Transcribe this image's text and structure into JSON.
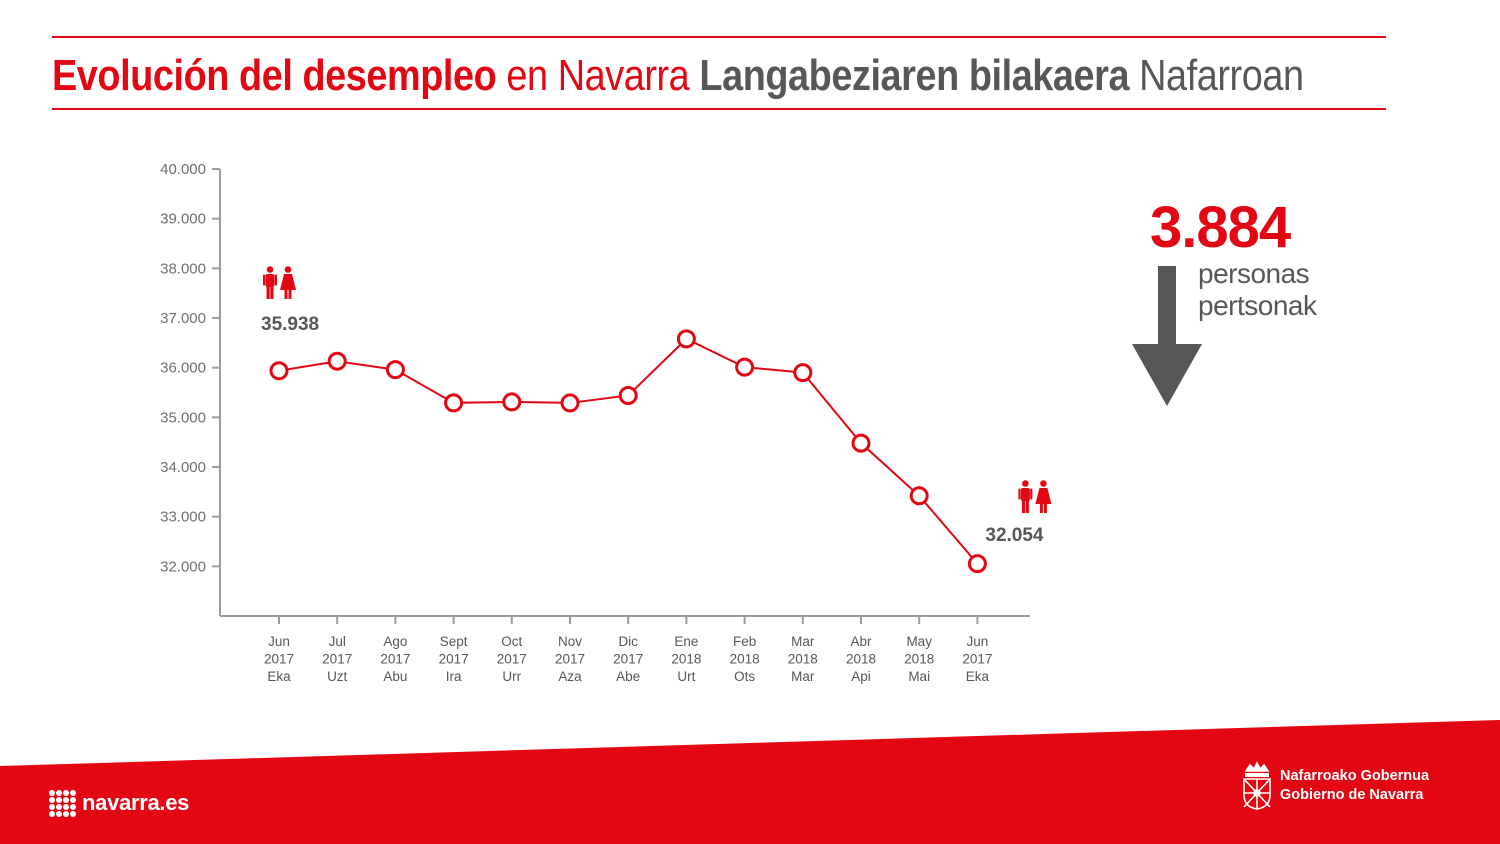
{
  "title": {
    "part1": "Evolución del desempleo",
    "part2": "en Navarra",
    "part3": "Langabeziaren bilakaera",
    "part4": "Nafarroan"
  },
  "colors": {
    "accent": "#e30613",
    "text_grey": "#575756",
    "arrow": "#575756"
  },
  "chart_data": {
    "type": "line",
    "categories": [
      [
        "Jun",
        "2017",
        "Eka"
      ],
      [
        "Jul",
        "2017",
        "Uzt"
      ],
      [
        "Ago",
        "2017",
        "Abu"
      ],
      [
        "Sept",
        "2017",
        "Ira"
      ],
      [
        "Oct",
        "2017",
        "Urr"
      ],
      [
        "Nov",
        "2017",
        "Aza"
      ],
      [
        "Dic",
        "2017",
        "Abe"
      ],
      [
        "Ene",
        "2018",
        "Urt"
      ],
      [
        "Feb",
        "2018",
        "Ots"
      ],
      [
        "Mar",
        "2018",
        "Mar"
      ],
      [
        "Abr",
        "2018",
        "Api"
      ],
      [
        "May",
        "2018",
        "Mai"
      ],
      [
        "Jun",
        "2017",
        "Eka"
      ]
    ],
    "values": [
      35938,
      36130,
      35960,
      35290,
      35310,
      35290,
      35440,
      36580,
      36010,
      35900,
      34480,
      33420,
      32054
    ],
    "ylim": [
      31000,
      40000
    ],
    "yticks": [
      32000,
      33000,
      34000,
      35000,
      36000,
      37000,
      38000,
      39000,
      40000
    ],
    "ytick_labels": [
      "32.000",
      "33.000",
      "34.000",
      "35.000",
      "36.000",
      "37.000",
      "38.000",
      "39.000",
      "40.000"
    ],
    "annotations": [
      {
        "index": 0,
        "label": "35.938",
        "icon": "people-icon"
      },
      {
        "index": 12,
        "label": "32.054",
        "icon": "people-icon"
      }
    ],
    "grid": false,
    "line_color": "#e30613",
    "marker": "open-circle"
  },
  "summary": {
    "value": "3.884",
    "line1": "personas",
    "line2": "pertsonak",
    "direction": "down-arrow-icon"
  },
  "footer": {
    "site": "navarra.es",
    "gov_line1": "Nafarroako Gobernua",
    "gov_line2": "Gobierno de Navarra",
    "logo": "navarra-coat-of-arms-icon"
  }
}
